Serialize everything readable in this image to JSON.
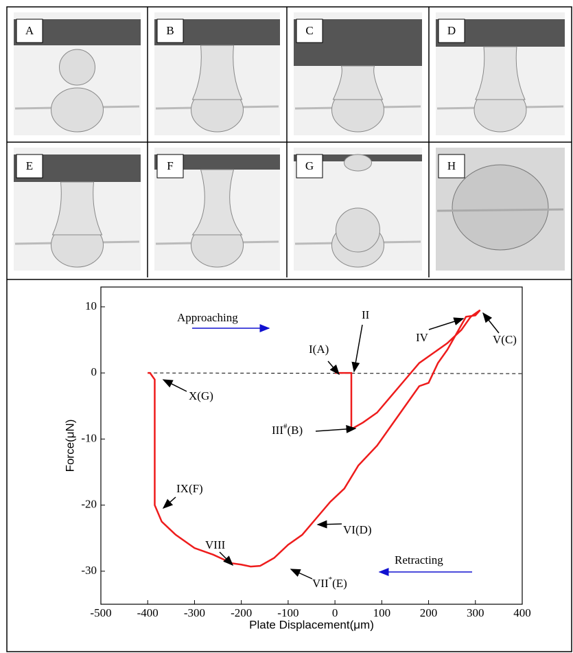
{
  "panels": [
    "A",
    "B",
    "C",
    "D",
    "E",
    "F",
    "G",
    "H"
  ],
  "chart_data": {
    "type": "line",
    "xlabel": "Plate Displacement(μm)",
    "ylabel": "Force(μN)",
    "xlim": [
      -500,
      400
    ],
    "ylim": [
      -35,
      13
    ],
    "xticks": [
      -500,
      -400,
      -300,
      -200,
      -100,
      0,
      100,
      200,
      300,
      400
    ],
    "yticks": [
      -30,
      -20,
      -10,
      0,
      10
    ],
    "series": [
      {
        "color": "#ee1c1c",
        "x": [
          0,
          35,
          35,
          60,
          90,
          120,
          150,
          180,
          210,
          240,
          270,
          290,
          310,
          300,
          280,
          260,
          240,
          220,
          200,
          180,
          150,
          120,
          90,
          50,
          20,
          -10,
          -40,
          -70,
          -100,
          -130,
          -160,
          -180,
          -200,
          -220,
          -260,
          -300,
          -340,
          -370,
          -385,
          -385,
          -395,
          -400
        ],
        "values": [
          0,
          0,
          -8.5,
          -7.5,
          -6,
          -3.5,
          -1,
          1.5,
          3,
          4.5,
          6.5,
          8.5,
          9.5,
          8.7,
          8.5,
          6,
          3.5,
          1.5,
          -1.5,
          -2,
          -5,
          -8,
          -11,
          -14,
          -17.5,
          -19.5,
          -22,
          -24.5,
          -26,
          -28,
          -29.2,
          -29.3,
          -29,
          -28.8,
          -27.5,
          -26.5,
          -24.5,
          -22.5,
          -20,
          -1,
          0,
          0
        ]
      }
    ],
    "annotations": [
      {
        "text": "Approaching"
      },
      {
        "text": "Retracting"
      },
      {
        "text": "I(A)"
      },
      {
        "text": "II"
      },
      {
        "text": "III",
        "sup": "#",
        "after": "(B)"
      },
      {
        "text": "IV"
      },
      {
        "text": "V(C)"
      },
      {
        "text": "VI(D)"
      },
      {
        "text": "VII",
        "sup": "*",
        "after": "(E)"
      },
      {
        "text": "VIII"
      },
      {
        "text": "IX(F)"
      },
      {
        "text": "X(G)"
      }
    ]
  }
}
